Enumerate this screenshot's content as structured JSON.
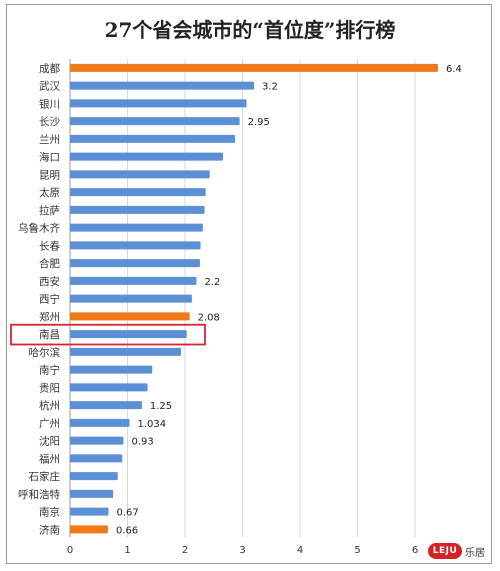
{
  "chart_data": {
    "type": "bar",
    "orientation": "horizontal",
    "title": "27个省会城市的“首位度”排行榜",
    "categories": [
      "成都",
      "武汉",
      "银川",
      "长沙",
      "兰州",
      "海口",
      "昆明",
      "太原",
      "拉萨",
      "乌鲁木齐",
      "长春",
      "合肥",
      "西安",
      "西宁",
      "郑州",
      "南昌",
      "哈尔滨",
      "南宁",
      "贵阳",
      "杭州",
      "广州",
      "沈阳",
      "福州",
      "石家庄",
      "呼和浩特",
      "南京",
      "济南"
    ],
    "values": [
      6.4,
      3.2,
      3.07,
      2.95,
      2.87,
      2.66,
      2.43,
      2.36,
      2.34,
      2.31,
      2.27,
      2.26,
      2.2,
      2.12,
      2.08,
      2.03,
      1.93,
      1.43,
      1.35,
      1.25,
      1.034,
      0.93,
      0.91,
      0.83,
      0.75,
      0.67,
      0.66
    ],
    "data_labels": [
      "6.4",
      "3.2",
      "",
      "2.95",
      "",
      "",
      "",
      "",
      "",
      "",
      "",
      "",
      "2.2",
      "",
      "2.08",
      "",
      "",
      "",
      "",
      "1.25",
      "1.034",
      "0.93",
      "",
      "",
      "",
      "0.67",
      "0.66"
    ],
    "highlighted": [
      "成都",
      "郑州",
      "济南"
    ],
    "boxed_category": "南昌",
    "xlim": [
      0,
      7
    ],
    "xticks": [
      "0",
      "1",
      "2",
      "3",
      "4",
      "5",
      "6"
    ],
    "grid": true,
    "colors": {
      "normal": "#5b8fd6",
      "highlight": "#f07a1a",
      "box": "#d9232d"
    }
  },
  "logo": {
    "badge": "LEJU",
    "text": "乐居"
  }
}
